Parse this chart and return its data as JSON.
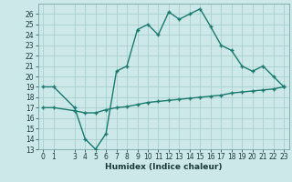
{
  "xlabel": "Humidex (Indice chaleur)",
  "background_color": "#cce8e8",
  "grid_color": "#aacece",
  "line_color": "#1a7a6e",
  "marker": "+",
  "ylim": [
    13,
    27
  ],
  "xlim": [
    -0.5,
    23.5
  ],
  "yticks": [
    13,
    14,
    15,
    16,
    17,
    18,
    19,
    20,
    21,
    22,
    23,
    24,
    25,
    26
  ],
  "xtick_positions": [
    0,
    1,
    3,
    4,
    5,
    6,
    7,
    8,
    9,
    10,
    11,
    12,
    13,
    14,
    15,
    16,
    17,
    18,
    19,
    20,
    21,
    22,
    23
  ],
  "xtick_labels": [
    "0",
    "1",
    "3",
    "4",
    "5",
    "6",
    "7",
    "8",
    "9",
    "10",
    "11",
    "12",
    "13",
    "14",
    "15",
    "16",
    "17",
    "18",
    "19",
    "20",
    "21",
    "22",
    "23"
  ],
  "series1_x": [
    0,
    1,
    3,
    4,
    5,
    6,
    7,
    8,
    9,
    10,
    11,
    12,
    13,
    14,
    15,
    16,
    17,
    18,
    19,
    20,
    21,
    22,
    23
  ],
  "series1_y": [
    19.0,
    19.0,
    17.0,
    14.0,
    13.0,
    14.5,
    20.5,
    21.0,
    24.5,
    25.0,
    24.0,
    26.2,
    25.5,
    26.0,
    26.5,
    24.8,
    23.0,
    22.5,
    21.0,
    20.5,
    21.0,
    20.0,
    19.0
  ],
  "series2_x": [
    0,
    1,
    3,
    4,
    5,
    6,
    7,
    8,
    9,
    10,
    11,
    12,
    13,
    14,
    15,
    16,
    17,
    18,
    19,
    20,
    21,
    22,
    23
  ],
  "series2_y": [
    17.0,
    17.0,
    16.7,
    16.5,
    16.5,
    16.8,
    17.0,
    17.1,
    17.3,
    17.5,
    17.6,
    17.7,
    17.8,
    17.9,
    18.0,
    18.1,
    18.2,
    18.4,
    18.5,
    18.6,
    18.7,
    18.8,
    19.0
  ],
  "fontsize_xlabel": 6.5,
  "fontsize_tick": 5.5,
  "linewidth": 1.0,
  "markersize": 3.5,
  "markeredgewidth": 1.0
}
